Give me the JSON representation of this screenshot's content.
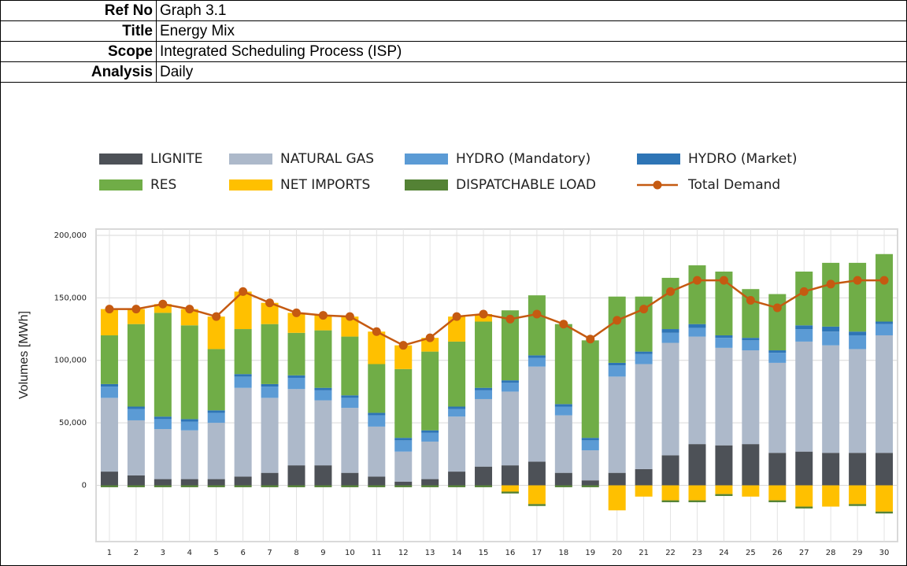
{
  "header": {
    "rows": [
      {
        "label": "Ref No",
        "value": "Graph 3.1"
      },
      {
        "label": "Title",
        "value": "Energy Mix"
      },
      {
        "label": "Scope",
        "value": "Integrated Scheduling Process (ISP)"
      },
      {
        "label": "Analysis",
        "value": "Daily"
      }
    ]
  },
  "chart_data": {
    "type": "bar",
    "stacked": true,
    "y_label": "Volumes [MWh]",
    "grid": true,
    "categories": [
      "1",
      "2",
      "3",
      "4",
      "5",
      "6",
      "7",
      "8",
      "9",
      "10",
      "11",
      "12",
      "13",
      "14",
      "15",
      "16",
      "17",
      "18",
      "19",
      "20",
      "21",
      "22",
      "23",
      "24",
      "25",
      "26",
      "27",
      "28",
      "29",
      "30"
    ],
    "ylim": [
      -45000,
      205000
    ],
    "yticks": [
      {
        "value": 0,
        "label": "0"
      },
      {
        "value": 50000,
        "label": "50,000"
      },
      {
        "value": 100000,
        "label": "100,000"
      },
      {
        "value": 150000,
        "label": "150,000"
      },
      {
        "value": 200000,
        "label": "200,000"
      }
    ],
    "series": [
      {
        "name": "LIGNITE",
        "color": "#4d5157",
        "values": [
          11000,
          8000,
          5000,
          5000,
          5000,
          7000,
          10000,
          16000,
          16000,
          10000,
          7000,
          3000,
          5000,
          11000,
          15000,
          16000,
          19000,
          10000,
          4000,
          10000,
          13000,
          24000,
          33000,
          32000,
          33000,
          26000,
          27000,
          26000,
          26000,
          26000
        ]
      },
      {
        "name": "NATURAL GAS",
        "color": "#adb9ca",
        "values": [
          59000,
          44000,
          40000,
          39000,
          45000,
          71000,
          60000,
          61000,
          52000,
          52000,
          40000,
          24000,
          30000,
          44000,
          54000,
          59000,
          76000,
          46000,
          24000,
          77000,
          84000,
          90000,
          86000,
          78000,
          75000,
          72000,
          88000,
          86000,
          83000,
          94000
        ]
      },
      {
        "name": "HYDRO (Mandatory)",
        "color": "#5b9bd5",
        "values": [
          9000,
          9000,
          8000,
          7000,
          8000,
          9000,
          9000,
          9000,
          8000,
          8000,
          9000,
          9000,
          7000,
          6000,
          7000,
          7000,
          7000,
          7000,
          8000,
          9000,
          8000,
          8000,
          7000,
          8000,
          8000,
          8000,
          10000,
          11000,
          11000,
          9000
        ]
      },
      {
        "name": "HYDRO (Market)",
        "color": "#2e75b6",
        "values": [
          2000,
          2000,
          2000,
          2000,
          2000,
          2000,
          2000,
          2000,
          2000,
          2000,
          2000,
          2000,
          2000,
          2000,
          2000,
          2000,
          2000,
          2000,
          2000,
          2000,
          2000,
          3000,
          3000,
          2000,
          2000,
          2000,
          3000,
          4000,
          3000,
          2000
        ]
      },
      {
        "name": "RES",
        "color": "#70ad47",
        "values": [
          39000,
          66000,
          83000,
          75000,
          49000,
          36000,
          48000,
          34000,
          46000,
          47000,
          39000,
          55000,
          63000,
          52000,
          53000,
          56000,
          48000,
          64000,
          78000,
          53000,
          44000,
          41000,
          47000,
          51000,
          39000,
          45000,
          43000,
          51000,
          55000,
          54000
        ]
      },
      {
        "name": "NET IMPORTS",
        "color": "#ffc000",
        "values": [
          21000,
          12000,
          7000,
          13000,
          26000,
          30000,
          17000,
          16000,
          12000,
          16000,
          26000,
          19000,
          11000,
          20000,
          6000,
          -5000,
          -15000,
          0,
          0,
          -20000,
          -9000,
          -12000,
          -12000,
          -7000,
          -9000,
          -12000,
          -17000,
          -17000,
          -15000,
          -21000
        ]
      },
      {
        "name": "DISPATCHABLE LOAD",
        "color": "#548235",
        "values": [
          -1500,
          -1500,
          -1500,
          -1500,
          -1500,
          -1500,
          -1500,
          -1500,
          -1500,
          -1500,
          -1500,
          -1500,
          -1500,
          -1500,
          -1500,
          -1500,
          -1500,
          -1500,
          -1500,
          0,
          0,
          -1500,
          -1500,
          -1500,
          0,
          -1500,
          -1500,
          0,
          -1500,
          -1500
        ]
      },
      {
        "name": "Total Demand",
        "type": "line",
        "color": "#c55a11",
        "values": [
          141000,
          141000,
          145000,
          141000,
          135000,
          155000,
          146000,
          138000,
          136000,
          135000,
          123000,
          112000,
          118000,
          135000,
          137000,
          133000,
          137000,
          129000,
          117000,
          132000,
          141000,
          155000,
          164000,
          164000,
          148000,
          142000,
          155000,
          161000,
          164000,
          164000
        ]
      }
    ]
  }
}
